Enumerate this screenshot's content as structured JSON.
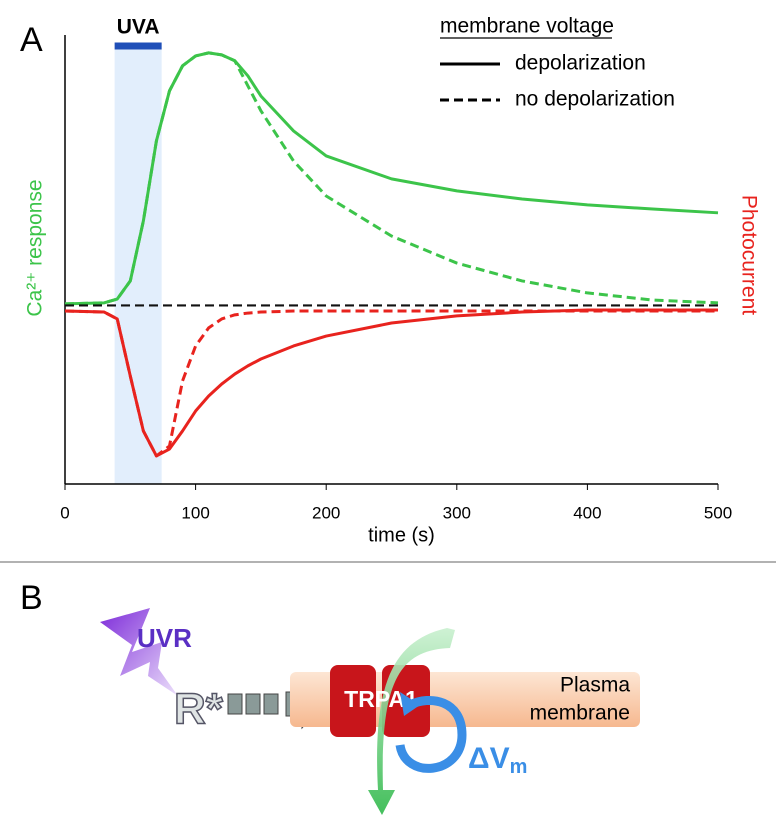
{
  "chart_data": {
    "type": "line",
    "xlabel": "time (s)",
    "ylabel": "Ca²⁺ response",
    "y2label": "Photocurrent",
    "xlim": [
      0,
      500
    ],
    "xticks": [
      0,
      100,
      200,
      300,
      400,
      500
    ],
    "ylim": [
      -69,
      107
    ],
    "shaded_region": {
      "label": "UVA",
      "x": [
        38,
        74
      ],
      "color": "#1f4fb8"
    },
    "legend": {
      "title": "membrane voltage",
      "entries": [
        {
          "label": "depolarization",
          "style": "solid"
        },
        {
          "label": "no depolarization",
          "style": "dashed"
        }
      ],
      "position": "upper right"
    },
    "x": [
      0,
      30,
      40,
      50,
      60,
      70,
      80,
      90,
      100,
      110,
      120,
      130,
      140,
      150,
      175,
      200,
      250,
      300,
      350,
      400,
      450,
      500
    ],
    "series": [
      {
        "color": "#3cc44a",
        "style": "solid",
        "values": [
          1.6,
          2,
          3.5,
          10.6,
          34.1,
          65.5,
          85.1,
          94.9,
          98.8,
          100,
          99.2,
          96.9,
          91,
          83.1,
          69.4,
          59.6,
          50.6,
          45.9,
          42.7,
          40.4,
          38.8,
          37.3
        ]
      },
      {
        "color": "#3cc44a",
        "style": "dashed",
        "values": [
          1.6,
          2,
          3.5,
          10.6,
          34.1,
          65.5,
          85.1,
          94.9,
          98.8,
          100,
          99.2,
          96.9,
          87.1,
          77.3,
          57.6,
          43.9,
          28.2,
          17.6,
          10.6,
          5.9,
          3.1,
          2
        ]
      },
      {
        "color": "#e8231e",
        "style": "solid",
        "values": [
          -1.2,
          -1.6,
          -4.3,
          -26.7,
          -48.2,
          -58,
          -55.3,
          -48.2,
          -40.4,
          -34.5,
          -29.8,
          -25.9,
          -22.7,
          -20,
          -14.9,
          -11,
          -5.9,
          -3.1,
          -1.6,
          -0.8,
          -0.8,
          -0.8
        ]
      },
      {
        "color": "#e8231e",
        "style": "dashed",
        "values": [
          -1.2,
          -1.6,
          -4.3,
          -26.7,
          -48.2,
          -58,
          -54.1,
          -28.6,
          -14.9,
          -7.8,
          -4.3,
          -2.7,
          -2,
          -1.6,
          -1.2,
          -1.2,
          -1.2,
          -1.2,
          -1.2,
          -1.2,
          -1.2,
          -1.2
        ]
      },
      {
        "color": "#111111",
        "style": "dashed",
        "values": [
          1,
          1,
          1,
          1,
          1,
          1,
          1,
          1,
          1,
          1,
          1,
          1,
          1,
          1,
          1,
          1,
          1,
          1,
          1,
          1,
          1,
          1
        ]
      }
    ]
  },
  "panel_labels": [
    "A",
    "B"
  ],
  "diagram": {
    "stimulus": "UVR",
    "receptor": "R*",
    "channel": "TRPA1",
    "membrane": [
      "Plasma",
      "membrane"
    ],
    "voltage": "ΔV",
    "voltage_sub": "m"
  }
}
